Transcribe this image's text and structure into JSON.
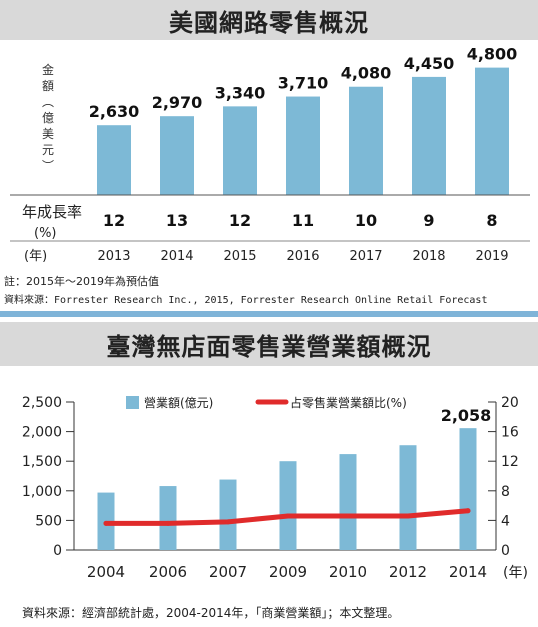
{
  "section1": {
    "title": "美國網路零售概況",
    "chart_data": {
      "type": "bar",
      "categories": [
        "2013",
        "2014",
        "2015",
        "2016",
        "2017",
        "2018",
        "2019"
      ],
      "values": [
        2630,
        2970,
        3340,
        3710,
        4080,
        4450,
        4800
      ],
      "value_labels": [
        "2,630",
        "2,970",
        "3,340",
        "3,710",
        "4,080",
        "4,450",
        "4,800"
      ],
      "ylabel_chars": [
        "金",
        "額",
        "︵",
        "億",
        "美",
        "元",
        "︶"
      ],
      "growth_row_label_line1": "年成長率",
      "growth_row_label_line2": "(%)",
      "growth_rates": [
        "12",
        "13",
        "12",
        "11",
        "10",
        "9",
        "8"
      ],
      "year_row_label": "(年)",
      "bar_color": "#7db9d6",
      "grid": false,
      "ylim": [
        0,
        5200
      ]
    },
    "note": "註：2015年～2019年為預估值",
    "source": "資料來源：Forrester Research Inc., 2015, Forrester Research Online Retail Forecast"
  },
  "section2": {
    "title": "臺灣無店面零售業營業額概況",
    "chart_data": {
      "type": "bar",
      "categories": [
        "2004",
        "2006",
        "2007",
        "2009",
        "2010",
        "2012",
        "2014"
      ],
      "x_unit": "(年)",
      "series": [
        {
          "name": "營業額(億元)",
          "type": "bar",
          "axis": "left",
          "color": "#7db9d6",
          "values": [
            970,
            1080,
            1190,
            1500,
            1620,
            1770,
            2058
          ]
        },
        {
          "name": "占零售業營業額比(%)",
          "type": "line",
          "axis": "right",
          "color": "#e02b2b",
          "values": [
            3.6,
            3.6,
            3.8,
            4.6,
            4.6,
            4.6,
            5.3
          ]
        }
      ],
      "highlight_label": "2,058",
      "y_left": {
        "ticks": [
          "0",
          "500",
          "1,000",
          "1,500",
          "2,000",
          "2,500"
        ],
        "ylim": [
          0,
          2500
        ]
      },
      "y_right": {
        "ticks": [
          "0",
          "4",
          "8",
          "12",
          "16",
          "20"
        ],
        "ylim": [
          0,
          20
        ]
      },
      "legend_position": "top",
      "grid": false
    },
    "source": "資料來源：經濟部統計處，2004-2014年，「商業營業額」；本文整理。"
  }
}
